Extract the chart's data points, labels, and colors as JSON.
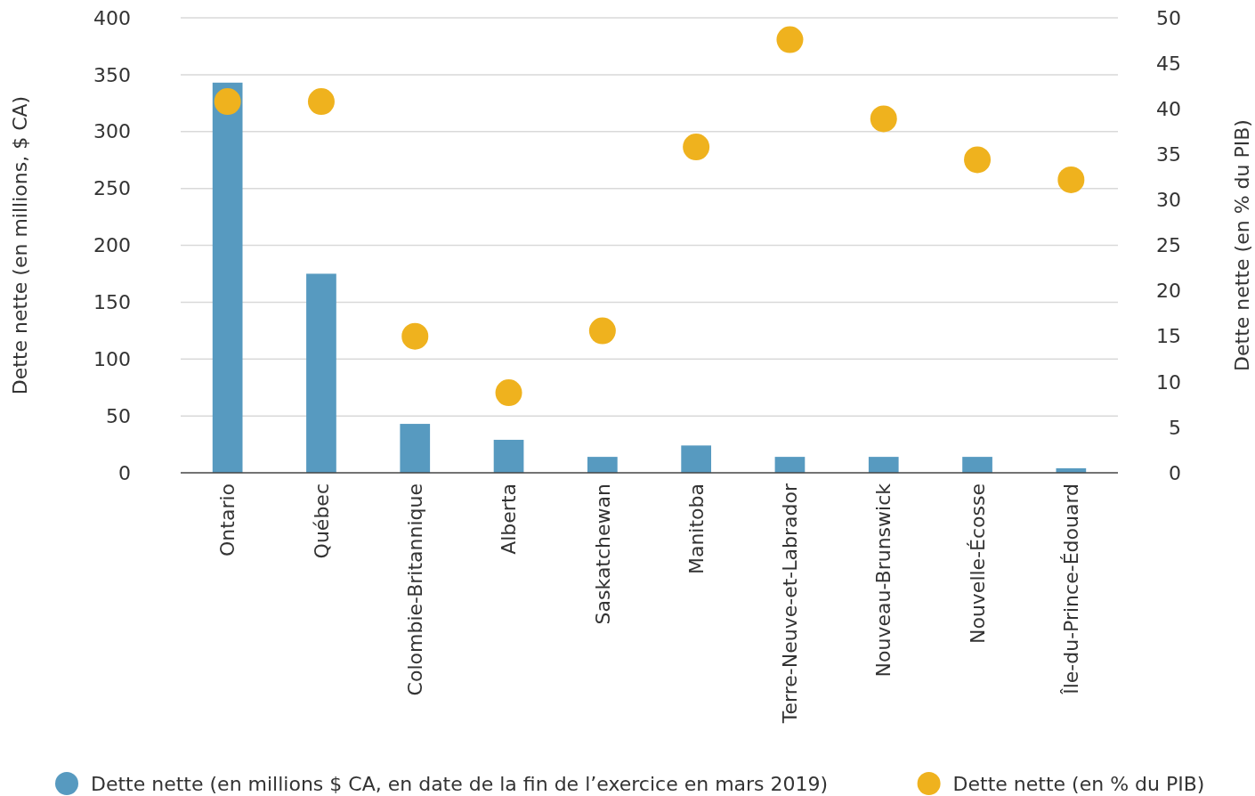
{
  "chart_data": {
    "type": "bar",
    "categories": [
      "Ontario",
      "Québec",
      "Colombie-Britannique",
      "Alberta",
      "Saskatchewan",
      "Manitoba",
      "Terre-Neuve-et-Labrador",
      "Nouveau-Brunswick",
      "Nouvelle-Écosse",
      "Île-du-Prince-Édouard"
    ],
    "series": [
      {
        "name": "Dette nette (en millions $ CA, en date de la fin de l’exercice en mars 2019)",
        "color": "#579ac0",
        "values": [
          343,
          175,
          43,
          29,
          14,
          24,
          14,
          14,
          14,
          4
        ]
      },
      {
        "name": "Dette nette (en % du PIB)",
        "type": "scatter",
        "axis": "y2",
        "color": "#efb21e",
        "values": [
          40.8,
          40.8,
          15.0,
          8.8,
          15.6,
          35.8,
          47.6,
          38.9,
          34.4,
          32.2
        ]
      }
    ],
    "ylabel": "Dette nette (en millions, $ CA)",
    "y2label": "Dette nette (en % du PIB)",
    "ylim": [
      0,
      400
    ],
    "yticks": [
      0,
      50,
      100,
      150,
      200,
      250,
      300,
      350,
      400
    ],
    "y2lim": [
      0,
      50
    ],
    "y2ticks": [
      0,
      5,
      10,
      15,
      20,
      25,
      30,
      35,
      40,
      45,
      50
    ],
    "grid": "y",
    "legend": "bottom",
    "marker": "circle"
  }
}
